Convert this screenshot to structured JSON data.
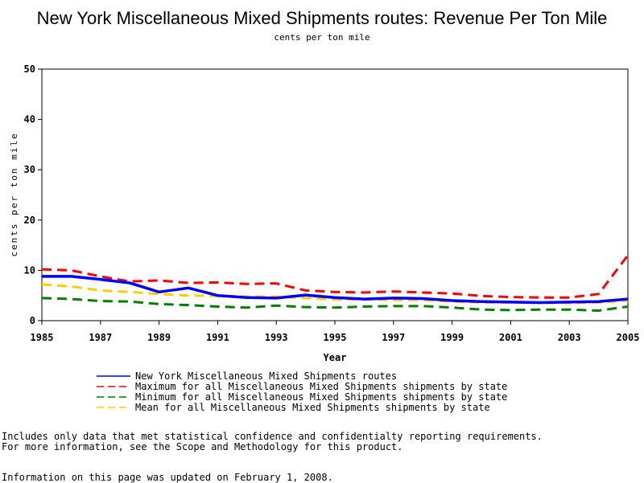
{
  "chart_data": {
    "type": "line",
    "title": "New York Miscellaneous Mixed Shipments routes: Revenue Per Ton Mile",
    "subtitle": "cents per ton mile",
    "xlabel": "Year",
    "ylabel": "cents per ton mile",
    "xlim": [
      1985,
      2005
    ],
    "ylim": [
      0,
      50
    ],
    "x_ticks": [
      "1985",
      "1987",
      "1989",
      "1991",
      "1993",
      "1995",
      "1997",
      "1999",
      "2001",
      "2003",
      "2005"
    ],
    "y_ticks": [
      "0",
      "10",
      "20",
      "30",
      "40",
      "50"
    ],
    "x": [
      1985,
      1986,
      1987,
      1988,
      1989,
      1990,
      1991,
      1992,
      1993,
      1994,
      1995,
      1996,
      1997,
      1998,
      1999,
      2000,
      2001,
      2002,
      2003,
      2004,
      2005
    ],
    "series": [
      {
        "name": "New York Miscellaneous Mixed Shipments routes",
        "color": "#0000ff",
        "dash": "solid",
        "values": [
          8.8,
          8.8,
          8.2,
          7.5,
          5.7,
          6.5,
          5.0,
          4.6,
          4.5,
          5.1,
          4.6,
          4.3,
          4.5,
          4.4,
          4.0,
          3.8,
          3.7,
          3.6,
          3.7,
          3.8,
          4.3
        ]
      },
      {
        "name": "Maximum for all Miscellaneous Mixed Shipments shipments by state",
        "color": "#ff0000",
        "dash": "dashed",
        "values": [
          10.2,
          10.0,
          8.8,
          7.8,
          8.0,
          7.5,
          7.6,
          7.3,
          7.4,
          6.0,
          5.7,
          5.6,
          5.8,
          5.6,
          5.4,
          4.9,
          4.7,
          4.6,
          4.6,
          5.3,
          13.0
        ]
      },
      {
        "name": "Minimum for all Miscellaneous Mixed Shipments shipments by state",
        "color": "#008000",
        "dash": "dashed",
        "values": [
          4.5,
          4.3,
          3.9,
          3.8,
          3.3,
          3.1,
          2.8,
          2.6,
          3.0,
          2.7,
          2.6,
          2.8,
          2.9,
          2.9,
          2.6,
          2.2,
          2.1,
          2.2,
          2.2,
          2.0,
          2.8
        ]
      },
      {
        "name": "Mean for all Miscellaneous Mixed Shipments shipments by state",
        "color": "#ffcc00",
        "dash": "dashed",
        "values": [
          7.2,
          6.8,
          6.0,
          5.7,
          5.3,
          5.0,
          4.9,
          4.8,
          4.8,
          4.5,
          4.2,
          4.2,
          4.1,
          4.1,
          3.8,
          3.6,
          3.6,
          3.5,
          3.5,
          3.6,
          4.0
        ]
      }
    ],
    "legend_position": "bottom-left",
    "grid": false
  },
  "notes": {
    "line1": "Includes only data that met statistical confidence and confidentialty reporting requirements.",
    "line2": "For more information, see the Scope and Methodology for this product.",
    "updated": "Information on this page was updated on February 1, 2008."
  }
}
